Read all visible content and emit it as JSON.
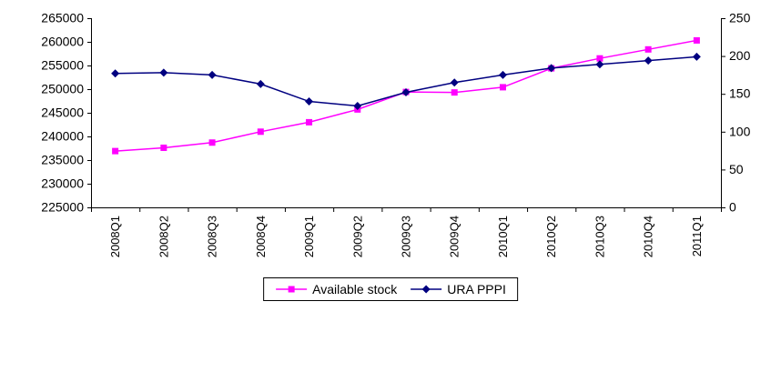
{
  "chart_data": {
    "type": "line",
    "title": "",
    "grid": false,
    "legend_position": "bottom",
    "categories": [
      "2008Q1",
      "2008Q2",
      "2008Q3",
      "2008Q4",
      "2009Q1",
      "2009Q2",
      "2009Q3",
      "2009Q4",
      "2010Q1",
      "2010Q2",
      "2010Q3",
      "2010Q4",
      "2011Q1"
    ],
    "left_axis": {
      "min": 225000,
      "max": 265000,
      "step": 5000,
      "ticks": [
        "225000",
        "230000",
        "235000",
        "240000",
        "245000",
        "250000",
        "255000",
        "260000",
        "265000"
      ]
    },
    "right_axis": {
      "min": 0,
      "max": 250,
      "step": 50,
      "ticks": [
        "0",
        "50",
        "100",
        "150",
        "200",
        "250"
      ]
    },
    "series": [
      {
        "name": "Available stock",
        "axis": "left",
        "color": "#FF00FF",
        "marker_color": "#FF00FF",
        "marker": "square",
        "values": [
          236900,
          237600,
          238700,
          241000,
          243000,
          245700,
          249400,
          249300,
          250400,
          254400,
          256500,
          258400,
          260300
        ]
      },
      {
        "name": "URA PPPI",
        "axis": "right",
        "color": "#000080",
        "marker_color": "#000080",
        "marker": "diamond",
        "values": [
          177,
          178,
          175,
          163,
          140,
          134,
          152,
          165,
          175,
          184,
          189,
          194,
          199
        ]
      }
    ]
  },
  "colors": {
    "axis": "#000000",
    "background": "#FFFFFF",
    "text": "#000000"
  }
}
